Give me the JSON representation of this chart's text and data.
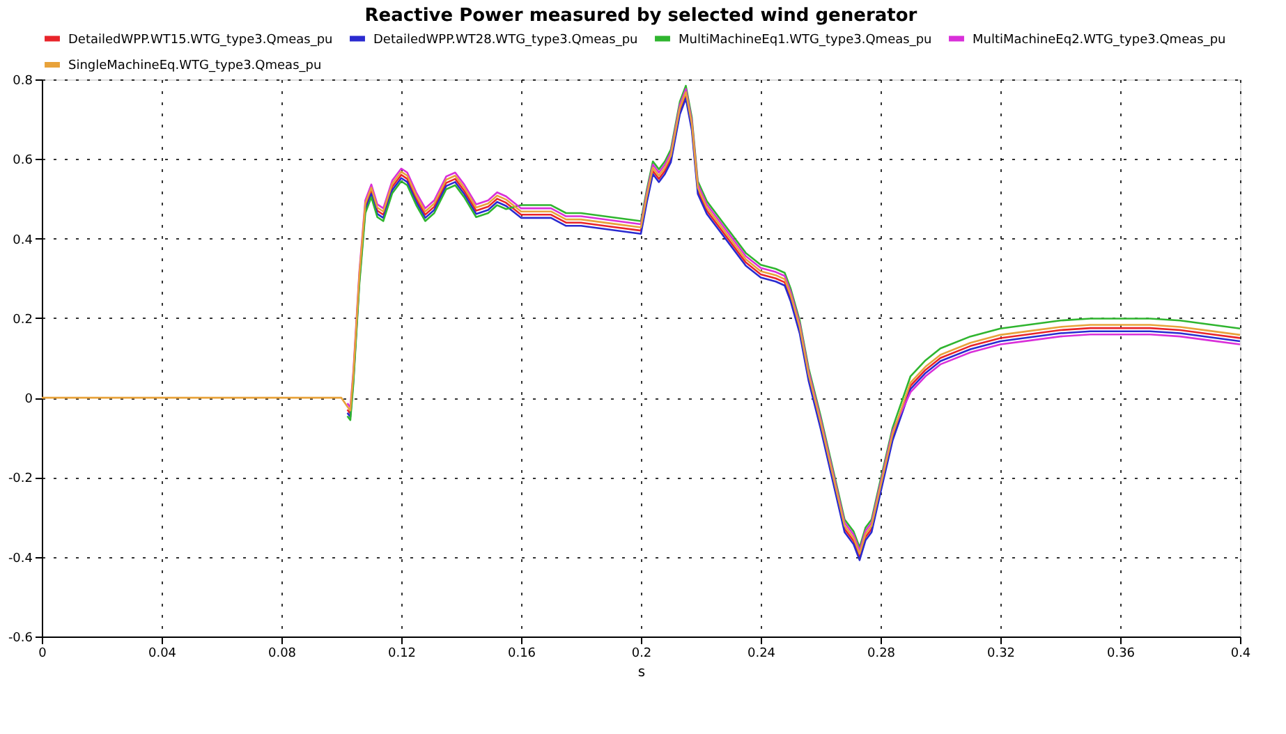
{
  "chart_data": {
    "type": "line",
    "title": "Reactive Power measured by selected wind generator",
    "xlabel": "s",
    "x": [
      0,
      0.1,
      0.102,
      0.103,
      0.104,
      0.106,
      0.108,
      0.11,
      0.112,
      0.114,
      0.117,
      0.12,
      0.122,
      0.125,
      0.128,
      0.131,
      0.135,
      0.138,
      0.141,
      0.145,
      0.149,
      0.152,
      0.155,
      0.16,
      0.165,
      0.17,
      0.175,
      0.18,
      0.19,
      0.2,
      0.202,
      0.204,
      0.206,
      0.208,
      0.21,
      0.213,
      0.215,
      0.217,
      0.219,
      0.222,
      0.226,
      0.23,
      0.235,
      0.24,
      0.245,
      0.248,
      0.25,
      0.253,
      0.256,
      0.26,
      0.264,
      0.268,
      0.271,
      0.273,
      0.275,
      0.277,
      0.28,
      0.284,
      0.29,
      0.295,
      0.3,
      0.31,
      0.32,
      0.33,
      0.34,
      0.35,
      0.36,
      0.37,
      0.38,
      0.39,
      0.4
    ],
    "series": [
      {
        "name": "DetailedWPP.WT15.WTG_type3.Qmeas_pu",
        "color": "#e8242a",
        "values": [
          null,
          null,
          -0.03,
          -0.04,
          0.05,
          0.3,
          0.48,
          0.52,
          0.47,
          0.46,
          0.53,
          0.56,
          0.55,
          0.5,
          0.46,
          0.48,
          0.54,
          0.55,
          0.52,
          0.47,
          0.48,
          0.5,
          0.49,
          0.46,
          0.46,
          0.46,
          0.44,
          0.44,
          0.43,
          0.42,
          0.5,
          0.57,
          0.55,
          0.57,
          0.6,
          0.72,
          0.76,
          0.68,
          0.52,
          0.47,
          0.43,
          0.39,
          0.34,
          0.31,
          0.3,
          0.29,
          0.25,
          0.17,
          0.05,
          -0.07,
          -0.2,
          -0.33,
          -0.36,
          -0.4,
          -0.35,
          -0.33,
          -0.23,
          -0.1,
          0.03,
          0.07,
          0.1,
          0.13,
          0.15,
          0.16,
          0.17,
          0.175,
          0.175,
          0.175,
          0.17,
          0.16,
          0.15
        ]
      },
      {
        "name": "DetailedWPP.WT28.WTG_type3.Qmeas_pu",
        "color": "#2a2ad0",
        "values": [
          null,
          null,
          -0.038,
          -0.048,
          0.042,
          0.292,
          0.472,
          0.512,
          0.462,
          0.452,
          0.522,
          0.552,
          0.542,
          0.492,
          0.452,
          0.472,
          0.532,
          0.542,
          0.512,
          0.462,
          0.472,
          0.492,
          0.482,
          0.452,
          0.452,
          0.452,
          0.432,
          0.432,
          0.422,
          0.412,
          0.492,
          0.562,
          0.542,
          0.562,
          0.592,
          0.712,
          0.752,
          0.672,
          0.512,
          0.462,
          0.422,
          0.382,
          0.332,
          0.302,
          0.292,
          0.282,
          0.242,
          0.162,
          0.042,
          -0.078,
          -0.208,
          -0.338,
          -0.368,
          -0.408,
          -0.358,
          -0.338,
          -0.238,
          -0.108,
          0.022,
          0.062,
          0.092,
          0.122,
          0.142,
          0.152,
          0.162,
          0.167,
          0.167,
          0.167,
          0.162,
          0.152,
          0.142
        ]
      },
      {
        "name": "MultiMachineEq1.WTG_type3.Qmeas_pu",
        "color": "#2fb52f",
        "values": [
          null,
          null,
          -0.046,
          -0.056,
          0.034,
          0.284,
          0.464,
          0.504,
          0.454,
          0.444,
          0.514,
          0.544,
          0.534,
          0.484,
          0.444,
          0.464,
          0.524,
          0.534,
          0.504,
          0.454,
          0.464,
          0.484,
          0.474,
          0.484,
          0.484,
          0.484,
          0.464,
          0.464,
          0.454,
          0.444,
          0.524,
          0.594,
          0.574,
          0.594,
          0.624,
          0.744,
          0.784,
          0.704,
          0.544,
          0.494,
          0.454,
          0.414,
          0.364,
          0.334,
          0.324,
          0.314,
          0.274,
          0.194,
          0.074,
          -0.046,
          -0.176,
          -0.306,
          -0.336,
          -0.376,
          -0.326,
          -0.306,
          -0.206,
          -0.076,
          0.054,
          0.094,
          0.124,
          0.154,
          0.174,
          0.184,
          0.194,
          0.199,
          0.199,
          0.199,
          0.194,
          0.184,
          0.174
        ]
      },
      {
        "name": "MultiMachineEq2.WTG_type3.Qmeas_pu",
        "color": "#d92fd9",
        "values": [
          null,
          null,
          -0.014,
          -0.024,
          0.066,
          0.316,
          0.496,
          0.536,
          0.486,
          0.476,
          0.546,
          0.576,
          0.566,
          0.516,
          0.476,
          0.496,
          0.556,
          0.566,
          0.536,
          0.486,
          0.496,
          0.516,
          0.506,
          0.476,
          0.476,
          0.476,
          0.456,
          0.456,
          0.446,
          0.436,
          0.516,
          0.586,
          0.566,
          0.586,
          0.616,
          0.736,
          0.776,
          0.696,
          0.536,
          0.486,
          0.446,
          0.406,
          0.356,
          0.326,
          0.316,
          0.306,
          0.266,
          0.186,
          0.066,
          -0.054,
          -0.184,
          -0.314,
          -0.344,
          -0.384,
          -0.334,
          -0.314,
          -0.214,
          -0.084,
          0.014,
          0.054,
          0.084,
          0.114,
          0.134,
          0.144,
          0.154,
          0.159,
          0.159,
          0.159,
          0.154,
          0.144,
          0.134
        ]
      },
      {
        "name": "SingleMachineEq.WTG_type3.Qmeas_pu",
        "color": "#e8a23a",
        "values": [
          0,
          0,
          -0.022,
          -0.032,
          0.058,
          0.308,
          0.488,
          0.528,
          0.478,
          0.468,
          0.538,
          0.568,
          0.558,
          0.508,
          0.468,
          0.488,
          0.548,
          0.558,
          0.528,
          0.478,
          0.488,
          0.508,
          0.498,
          0.468,
          0.468,
          0.468,
          0.448,
          0.448,
          0.438,
          0.428,
          0.508,
          0.578,
          0.558,
          0.578,
          0.608,
          0.728,
          0.768,
          0.688,
          0.528,
          0.478,
          0.438,
          0.398,
          0.348,
          0.318,
          0.308,
          0.298,
          0.258,
          0.178,
          0.058,
          -0.062,
          -0.192,
          -0.322,
          -0.352,
          -0.392,
          -0.342,
          -0.322,
          -0.222,
          -0.092,
          0.038,
          0.078,
          0.108,
          0.138,
          0.158,
          0.168,
          0.178,
          0.183,
          0.183,
          0.183,
          0.178,
          0.168,
          0.158
        ]
      }
    ],
    "xlim": [
      0,
      0.4
    ],
    "xticks": [
      0,
      0.04,
      0.08,
      0.12,
      0.16,
      0.2,
      0.24,
      0.28,
      0.32,
      0.36,
      0.4
    ],
    "ylim": [
      -0.6,
      0.8
    ],
    "yticks": [
      -0.6,
      -0.4,
      -0.2,
      0,
      0.2,
      0.4,
      0.6,
      0.8
    ],
    "grid": true,
    "legend": "top",
    "marker": "none",
    "line_style": "solid"
  }
}
